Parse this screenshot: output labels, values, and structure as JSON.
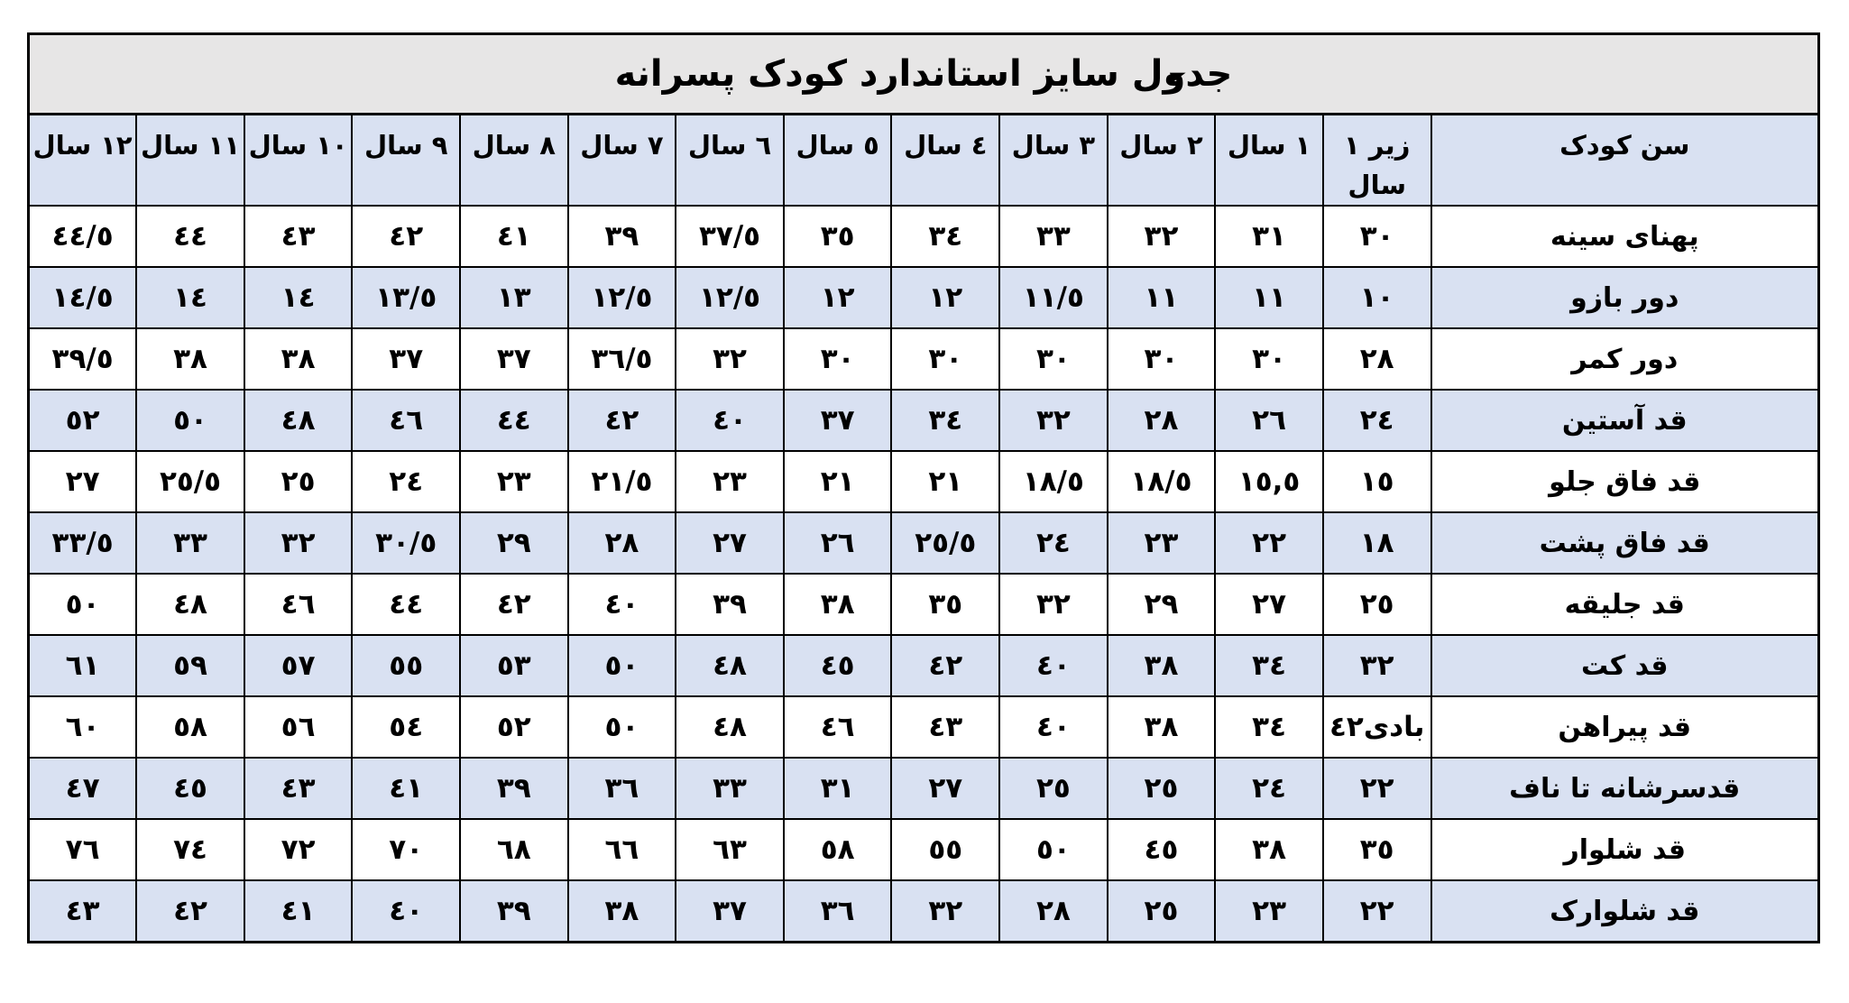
{
  "title": "جدول سایز استاندارد کودک پسرانه",
  "colors": {
    "title_bg": "#e7e6e6",
    "stripe_bg": "#d9e1f2",
    "border": "#000000",
    "text": "#000000"
  },
  "cursor_icon": "►",
  "table": {
    "corner_header": "سن کودک",
    "age_headers": [
      "زیر ١\nسال",
      "١ سال",
      "٢ سال",
      "٣ سال",
      "٤ سال",
      "٥ سال",
      "٦ سال",
      "٧ سال",
      "٨ سال",
      "٩ سال",
      "١٠ سال",
      "١١ سال",
      "١٢ سال"
    ],
    "rows": [
      {
        "label": "پهنای سینه",
        "values": [
          "٣٠",
          "٣١",
          "٣٢",
          "٣٣",
          "٣٤",
          "٣٥",
          "٣٧/٥",
          "٣٩",
          "٤١",
          "٤٢",
          "٤٣",
          "٤٤",
          "٤٤/٥"
        ]
      },
      {
        "label": "دور بازو",
        "values": [
          "١٠",
          "١١",
          "١١",
          "١١/٥",
          "١٢",
          "١٢",
          "١٢/٥",
          "١٢/٥",
          "١٣",
          "١٣/٥",
          "١٤",
          "١٤",
          "١٤/٥"
        ]
      },
      {
        "label": "دور کمر",
        "values": [
          "٢٨",
          "٣٠",
          "٣٠",
          "٣٠",
          "٣٠",
          "٣٠",
          "٣٢",
          "٣٦/٥",
          "٣٧",
          "٣٧",
          "٣٨",
          "٣٨",
          "٣٩/٥"
        ]
      },
      {
        "label": "قد آستین",
        "values": [
          "٢٤",
          "٢٦",
          "٢٨",
          "٣٢",
          "٣٤",
          "٣٧",
          "٤٠",
          "٤٢",
          "٤٤",
          "٤٦",
          "٤٨",
          "٥٠",
          "٥٢"
        ]
      },
      {
        "label": "قد فاق جلو",
        "values": [
          "١٥",
          "١٥,٥",
          "١٨/٥",
          "١٨/٥",
          "٢١",
          "٢١",
          "٢٣",
          "٢١/٥",
          "٢٣",
          "٢٤",
          "٢٥",
          "٢٥/٥",
          "٢٧"
        ]
      },
      {
        "label": "قد فاق پشت",
        "values": [
          "١٨",
          "٢٢",
          "٢٣",
          "٢٤",
          "٢٥/٥",
          "٢٦",
          "٢٧",
          "٢٨",
          "٢٩",
          "٣٠/٥",
          "٣٢",
          "٣٣",
          "٣٣/٥"
        ]
      },
      {
        "label": "قد جلیقه",
        "values": [
          "٢٥",
          "٢٧",
          "٢٩",
          "٣٢",
          "٣٥",
          "٣٨",
          "٣٩",
          "٤٠",
          "٤٢",
          "٤٤",
          "٤٦",
          "٤٨",
          "٥٠"
        ]
      },
      {
        "label": "قد کت",
        "values": [
          "٣٢",
          "٣٤",
          "٣٨",
          "٤٠",
          "٤٢",
          "٤٥",
          "٤٨",
          "٥٠",
          "٥٣",
          "٥٥",
          "٥٧",
          "٥٩",
          "٦١"
        ]
      },
      {
        "label": "قد پیراهن",
        "values": [
          "بادی٤٢",
          "٣٤",
          "٣٨",
          "٤٠",
          "٤٣",
          "٤٦",
          "٤٨",
          "٥٠",
          "٥٢",
          "٥٤",
          "٥٦",
          "٥٨",
          "٦٠"
        ]
      },
      {
        "label": "قدسرشانه تا ناف",
        "values": [
          "٢٢",
          "٢٤",
          "٢٥",
          "٢٥",
          "٢٧",
          "٣١",
          "٣٣",
          "٣٦",
          "٣٩",
          "٤١",
          "٤٣",
          "٤٥",
          "٤٧"
        ]
      },
      {
        "label": "قد شلوار",
        "values": [
          "٣٥",
          "٣٨",
          "٤٥",
          "٥٠",
          "٥٥",
          "٥٨",
          "٦٣",
          "٦٦",
          "٦٨",
          "٧٠",
          "٧٢",
          "٧٤",
          "٧٦"
        ]
      },
      {
        "label": "قد شلوارک",
        "values": [
          "٢٢",
          "٢٣",
          "٢٥",
          "٢٨",
          "٣٢",
          "٣٦",
          "٣٧",
          "٣٨",
          "٣٩",
          "٤٠",
          "٤١",
          "٤٢",
          "٤٣"
        ]
      }
    ]
  }
}
